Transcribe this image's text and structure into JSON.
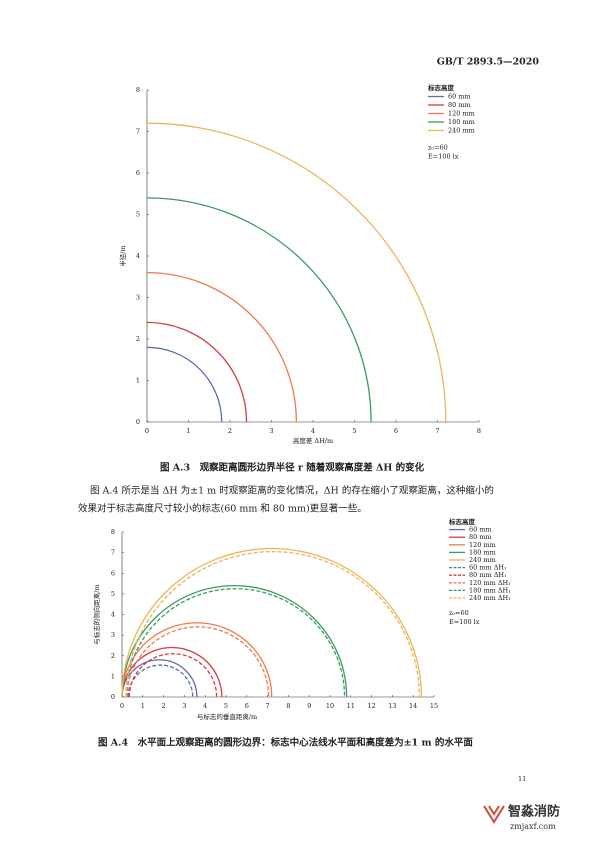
{
  "header": "GB/T 2893.5—2020",
  "chart_data": [
    {
      "type": "quarter_arc",
      "title": "图 A.3　观察距离圆形边界半径 r 随着观察高度差 ΔH 的变化",
      "x_label": "高度差 ΔH/m",
      "y_label": "半径/m",
      "legend_title": "标志高度",
      "annotations": [
        "z₀=60",
        "E=100 lx"
      ],
      "xlim": [
        0,
        8
      ],
      "ylim": [
        0,
        8
      ],
      "xticks": [
        0,
        1,
        2,
        3,
        4,
        5,
        6,
        7,
        8
      ],
      "yticks": [
        0,
        1,
        2,
        3,
        4,
        5,
        6,
        7,
        8
      ],
      "series": [
        {
          "name": "60 mm",
          "color": "#5b6db3",
          "values": [
            1.8
          ]
        },
        {
          "name": "80 mm",
          "color": "#d83a44",
          "values": [
            2.4
          ]
        },
        {
          "name": "120 mm",
          "color": "#ee7a50",
          "values": [
            3.6
          ]
        },
        {
          "name": "180 mm",
          "color": "#3d9a60",
          "values": [
            5.4
          ]
        },
        {
          "name": "240 mm",
          "color": "#eeb458",
          "values": [
            7.2
          ]
        }
      ]
    },
    {
      "type": "semicircle",
      "title": "图 A.4　水平面上观察距离的圆形边界：标志中心法线水平面和高度差为±1 m 的水平面",
      "x_label": "与标志的垂直距离/m",
      "y_label": "与标志的侧向距离/m",
      "legend_title": "标志高度",
      "annotations": [
        "z₀=60",
        "E=100 lx"
      ],
      "xlim": [
        0,
        15
      ],
      "ylim": [
        0,
        8
      ],
      "xticks": [
        0,
        1,
        2,
        3,
        4,
        5,
        6,
        7,
        8,
        9,
        10,
        11,
        12,
        13,
        14,
        15
      ],
      "yticks": [
        0,
        1,
        2,
        3,
        4,
        5,
        6,
        7,
        8
      ],
      "series": [
        {
          "name": "60 mm",
          "color": "#5b6db3",
          "center": 1.8,
          "values": [
            1.8
          ]
        },
        {
          "name": "80 mm",
          "color": "#d83a44",
          "center": 2.4,
          "values": [
            2.4
          ]
        },
        {
          "name": "120 mm",
          "color": "#ee7a50",
          "center": 3.6,
          "values": [
            3.6
          ]
        },
        {
          "name": "180 mm",
          "color": "#3d9a60",
          "center": 5.4,
          "values": [
            5.4
          ]
        },
        {
          "name": "240 mm",
          "color": "#eeb458",
          "center": 7.2,
          "values": [
            7.2
          ]
        },
        {
          "name": "60 mm ΔH₁",
          "color": "#5b6db3",
          "dash": true,
          "center": 1.85,
          "values": [
            1.55
          ]
        },
        {
          "name": "80 mm ΔH₁",
          "color": "#d83a44",
          "dash": true,
          "center": 2.45,
          "values": [
            2.1
          ]
        },
        {
          "name": "120 mm ΔH₁",
          "color": "#ee7a50",
          "dash": true,
          "center": 3.65,
          "values": [
            3.4
          ]
        },
        {
          "name": "180 mm ΔH₁",
          "color": "#3d9a60",
          "dash": true,
          "center": 5.45,
          "values": [
            5.25
          ]
        },
        {
          "name": "240 mm ΔH₁",
          "color": "#eeb458",
          "dash": true,
          "center": 7.25,
          "values": [
            7.05
          ]
        }
      ]
    }
  ],
  "paragraph": [
    "图 A.4 所示是当 ΔH 为±1 m 时观察距离的变化情况，ΔH 的存在缩小了观察距离，这种缩小的",
    "效果对于标志高度尺寸较小的标志(60 mm 和 80 mm)更显著一些。"
  ],
  "page_number": "11",
  "watermark": {
    "name": "智淼消防",
    "url": "zmjaxf.com"
  }
}
